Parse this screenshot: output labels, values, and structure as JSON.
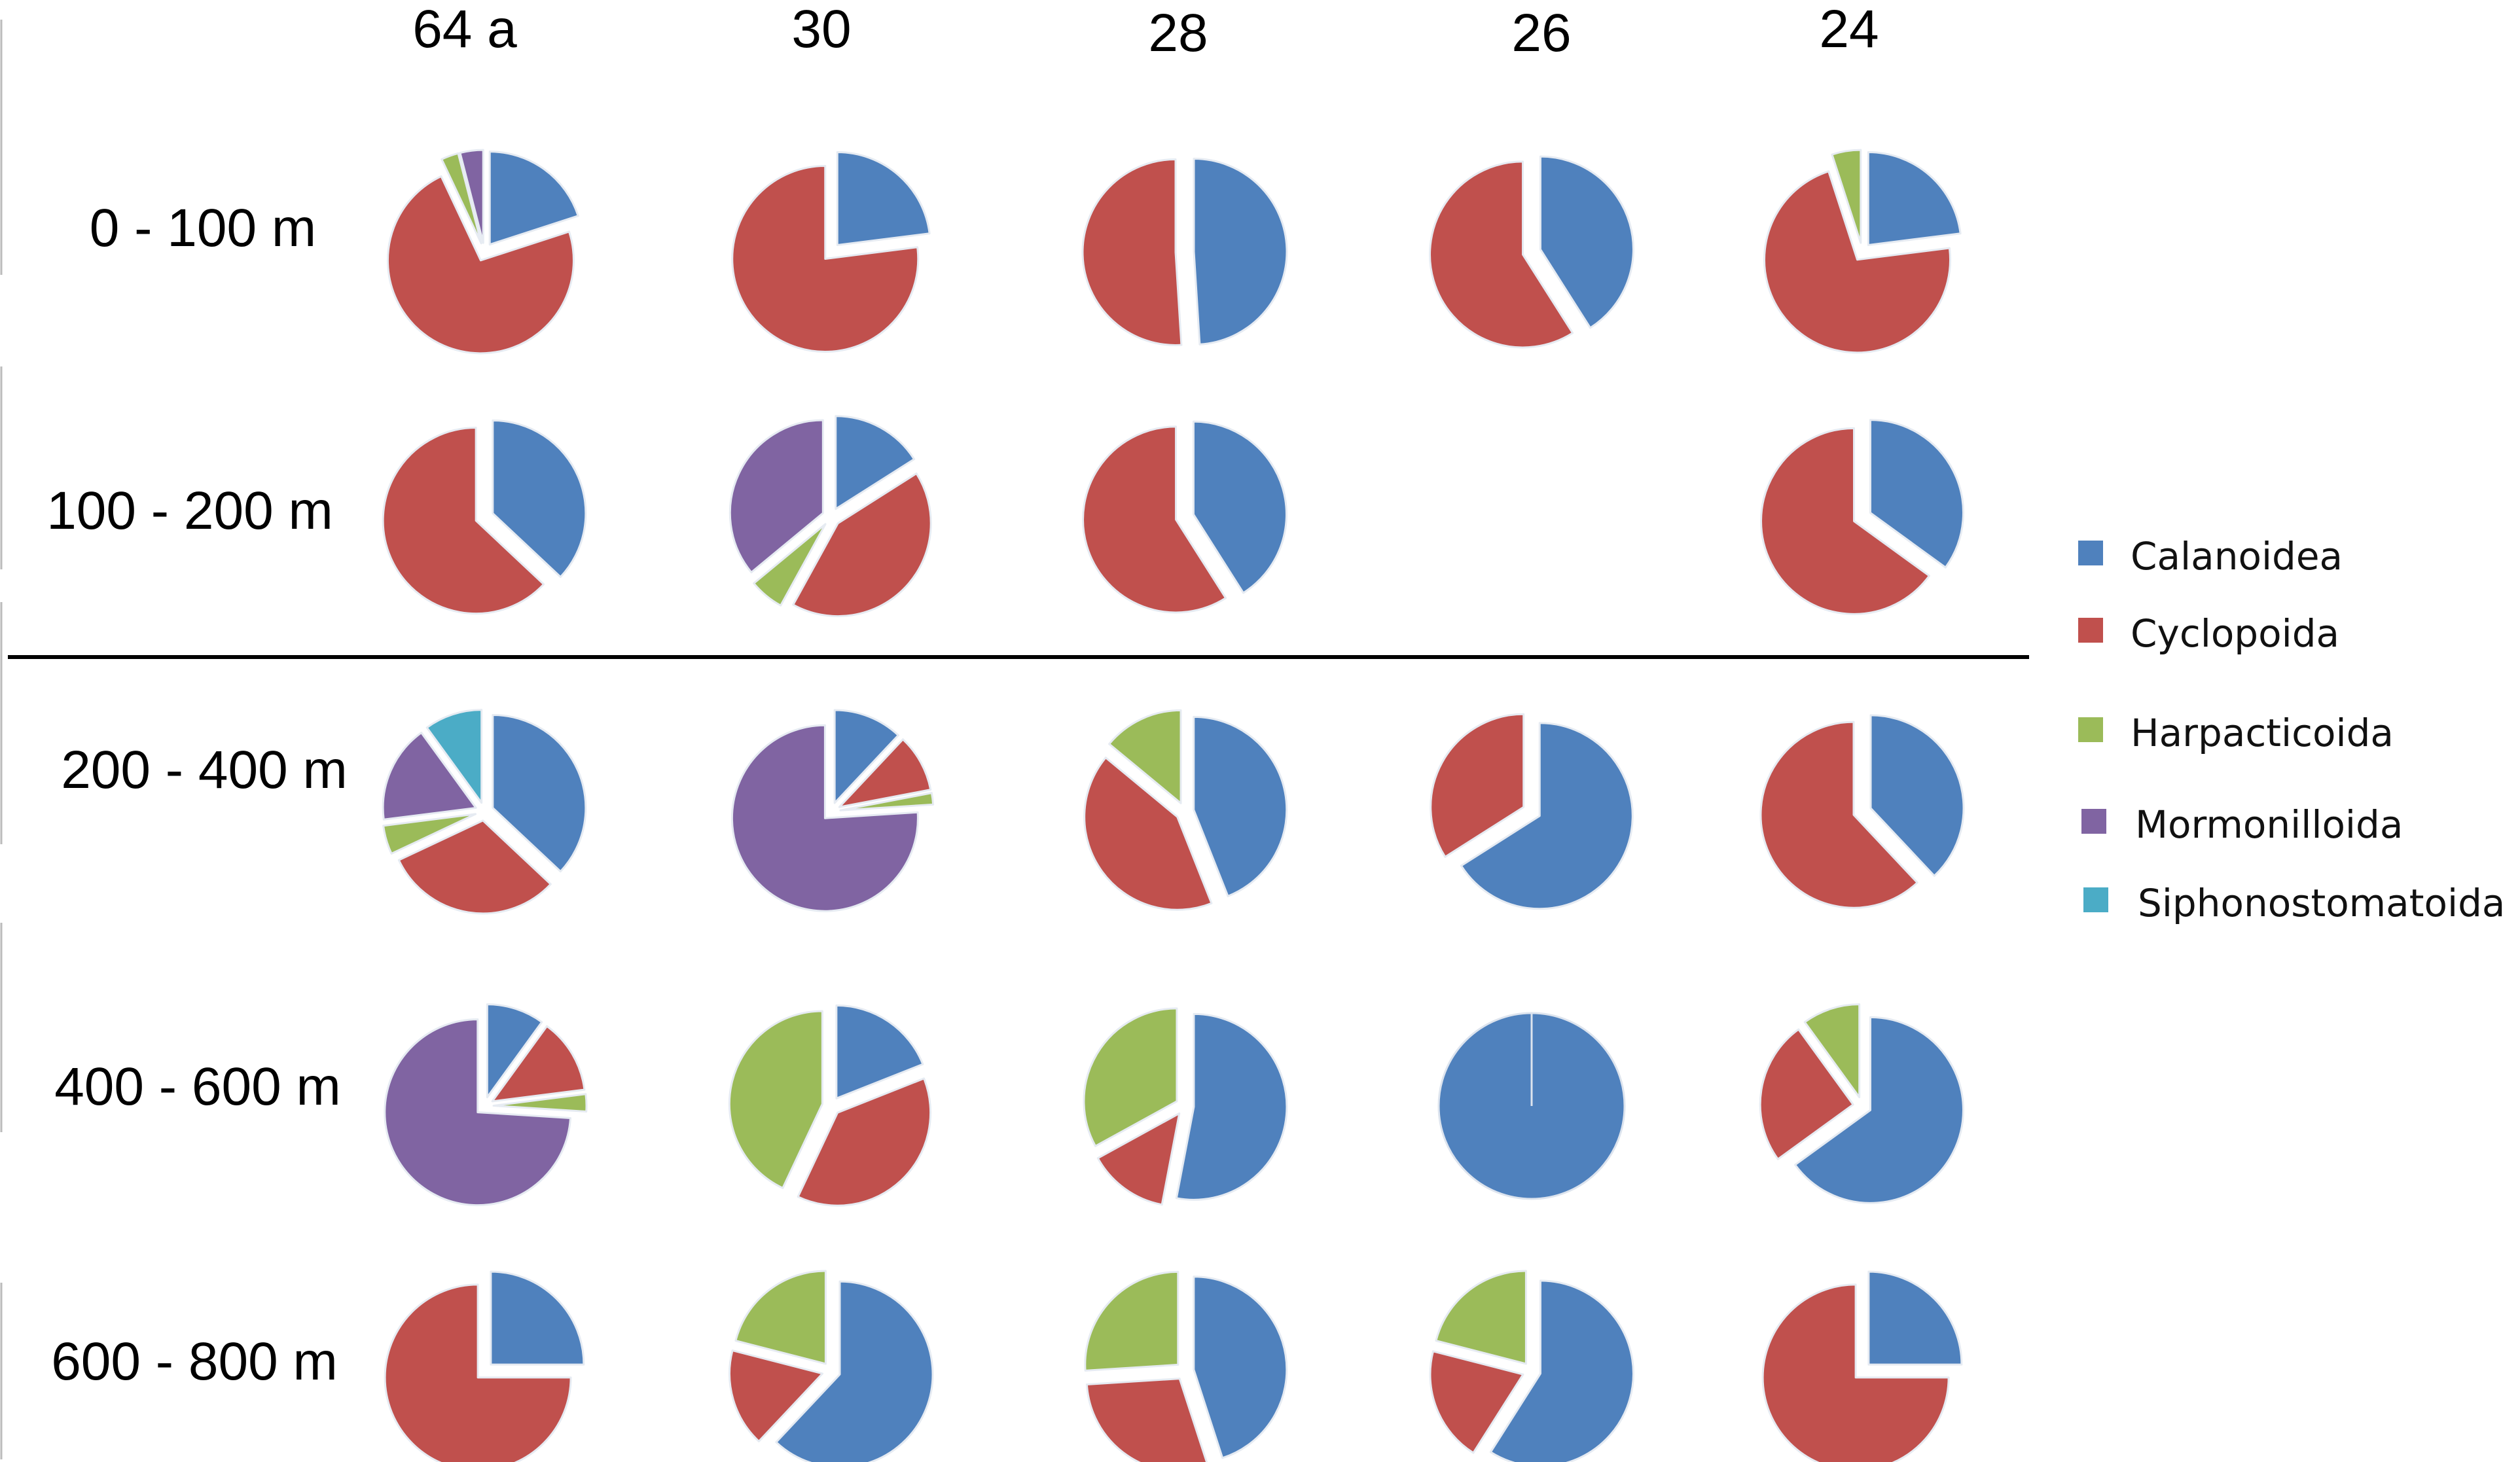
{
  "chart_data": {
    "type": "pie",
    "columns": [
      "64 a",
      "30",
      "28",
      "26",
      "24"
    ],
    "rows": [
      "0 - 100 m",
      "100 - 200 m",
      "200 - 400 m",
      "400 - 600 m",
      "600 - 800 m"
    ],
    "legend_position": "right",
    "series": [
      {
        "name": "Calanoidea",
        "color": "#4F81BD"
      },
      {
        "name": "Cyclopoida",
        "color": "#C0504D"
      },
      {
        "name": "Harpacticoida",
        "color": "#9BBB59"
      },
      {
        "name": "Mormonilloida",
        "color": "#8064A2"
      },
      {
        "name": "Siphonostomatoida",
        "color": "#4BACC6"
      }
    ],
    "pies": [
      [
        [
          20,
          73,
          3,
          4,
          0
        ],
        [
          23,
          77,
          0,
          0,
          0
        ],
        [
          49,
          51,
          0,
          0,
          0
        ],
        [
          41,
          59,
          0,
          0,
          0
        ],
        [
          23,
          72,
          5,
          0,
          0
        ]
      ],
      [
        [
          37,
          63,
          0,
          0,
          0
        ],
        [
          16,
          42,
          6,
          36,
          0
        ],
        [
          41,
          59,
          0,
          0,
          0
        ],
        null,
        [
          35,
          65,
          0,
          0,
          0
        ]
      ],
      [
        [
          37,
          31,
          5,
          17,
          10
        ],
        [
          12,
          10,
          2,
          76,
          0
        ],
        [
          44,
          42,
          14,
          0,
          0
        ],
        [
          66,
          34,
          0,
          0,
          0
        ],
        [
          38,
          62,
          0,
          0,
          0
        ]
      ],
      [
        [
          10,
          13,
          3,
          74,
          0
        ],
        [
          19,
          38,
          43,
          0,
          0
        ],
        [
          53,
          14,
          33,
          0,
          0
        ],
        [
          100,
          0,
          0,
          0,
          0
        ],
        [
          65,
          25,
          10,
          0,
          0
        ]
      ],
      [
        [
          25,
          75,
          0,
          0,
          0
        ],
        [
          62,
          17,
          21,
          0,
          0
        ],
        [
          45,
          29,
          26,
          0,
          0
        ],
        [
          59,
          20,
          21,
          0,
          0
        ],
        [
          25,
          75,
          0,
          0,
          0
        ]
      ]
    ]
  }
}
